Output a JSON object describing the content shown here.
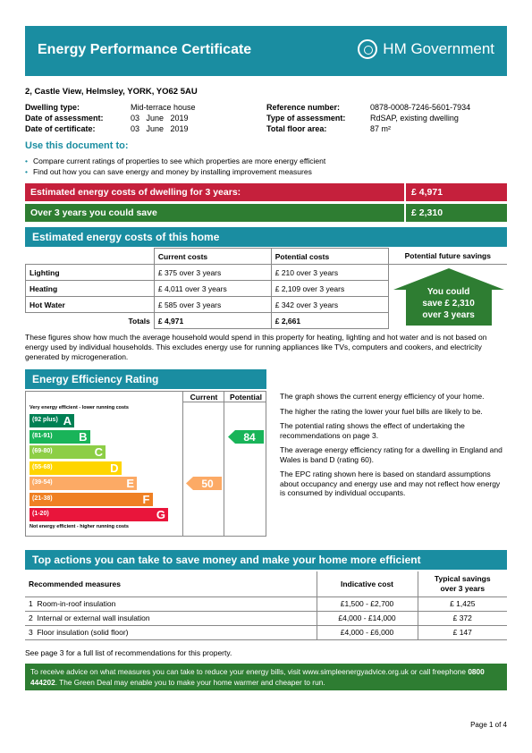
{
  "header": {
    "title": "Energy Performance Certificate",
    "gov": "HM Government"
  },
  "address": "2, Castle View, Helmsley, YORK, YO62 5AU",
  "info_left": [
    {
      "label": "Dwelling type:",
      "value": "Mid-terrace house"
    },
    {
      "label": "Date of assessment:",
      "value": "03   June   2019"
    },
    {
      "label": "Date of certificate:",
      "value": "03   June   2019"
    }
  ],
  "info_right": [
    {
      "label": "Reference number:",
      "value": "0878-0008-7246-5601-7934"
    },
    {
      "label": "Type of assessment:",
      "value": "RdSAP, existing dwelling"
    },
    {
      "label": "Total floor area:",
      "value": "87 m²"
    }
  ],
  "use_title": "Use this document to:",
  "bullets": [
    "Compare current ratings of properties to see which properties are more energy efficient",
    "Find out how you can save energy and money by installing improvement measures"
  ],
  "est_costs_label": "Estimated energy costs of dwelling for 3 years:",
  "est_costs_value": "£ 4,971",
  "save_label": "Over 3 years you could save",
  "save_value": "£ 2,310",
  "costs_section_title": "Estimated energy costs of this home",
  "costs_table": {
    "headers": [
      "Current costs",
      "Potential costs",
      "Potential future savings"
    ],
    "rows": [
      {
        "name": "Lighting",
        "current": "£ 375 over 3 years",
        "potential": "£ 210 over 3 years"
      },
      {
        "name": "Heating",
        "current": "£ 4,011 over 3 years",
        "potential": "£ 2,109 over 3 years"
      },
      {
        "name": "Hot Water",
        "current": "£ 585 over 3 years",
        "potential": "£ 342 over 3 years"
      }
    ],
    "totals_label": "Totals",
    "totals_current": "£ 4,971",
    "totals_potential": "£ 2,661",
    "arrow_line1": "You could",
    "arrow_line2": "save £ 2,310",
    "arrow_line3": "over 3 years"
  },
  "costs_note": "These figures show how much the average household would spend in this property for heating, lighting and hot water and is not based on energy used by individual households. This excludes energy use for running appliances like TVs, computers and cookers, and electricity generated by microgeneration.",
  "efficiency_title": "Energy Efficiency Rating",
  "rating": {
    "col_current": "Current",
    "col_potential": "Potential",
    "top_note": "Very energy efficient - lower running costs",
    "bottom_note": "Not energy efficient - higher running costs",
    "bands": [
      {
        "range": "(92 plus)",
        "letter": "A",
        "color": "#008054"
      },
      {
        "range": "(81-91)",
        "letter": "B",
        "color": "#19b459"
      },
      {
        "range": "(69-80)",
        "letter": "C",
        "color": "#8dce46"
      },
      {
        "range": "(55-68)",
        "letter": "D",
        "color": "#ffd500"
      },
      {
        "range": "(39-54)",
        "letter": "E",
        "color": "#fcaa65"
      },
      {
        "range": "(21-38)",
        "letter": "F",
        "color": "#ef8023"
      },
      {
        "range": "(1-20)",
        "letter": "G",
        "color": "#e9153b"
      }
    ],
    "current": "50",
    "potential": "84"
  },
  "rating_text": [
    "The graph shows the current energy efficiency of your home.",
    "The higher the rating the lower your fuel bills are likely to be.",
    "The potential rating shows the effect of undertaking the recommendations on page 3.",
    "The average energy efficiency rating for a dwelling in England and Wales is band D (rating 60).",
    "The EPC rating shown here is based on standard assumptions about occupancy and energy use and may not reflect how energy is consumed by individual occupants."
  ],
  "actions_title": "Top actions you can take to save money and make your home more efficient",
  "actions": {
    "h_measures": "Recommended measures",
    "h_cost": "Indicative cost",
    "h_savings_1": "Typical savings",
    "h_savings_2": "over 3 years",
    "rows": [
      {
        "num": "1",
        "name": "Room-in-roof insulation",
        "cost": "£1,500 - £2,700",
        "saving": "£ 1,425"
      },
      {
        "num": "2",
        "name": "Internal or external wall insulation",
        "cost": "£4,000 - £14,000",
        "saving": "£ 372"
      },
      {
        "num": "3",
        "name": "Floor insulation (solid floor)",
        "cost": "£4,000 - £6,000",
        "saving": "£ 147"
      }
    ]
  },
  "see_page": "See page 3 for a full list of recommendations for this property.",
  "footer_pre": "To receive advice on what measures you can take to reduce your energy bills, visit www.simpleenergyadvice.org.uk or call freephone ",
  "footer_phone": "0800 444202",
  "footer_post": ". The Green Deal may enable you to make your home warmer and cheaper to run.",
  "page_number": "Page 1 of 4"
}
